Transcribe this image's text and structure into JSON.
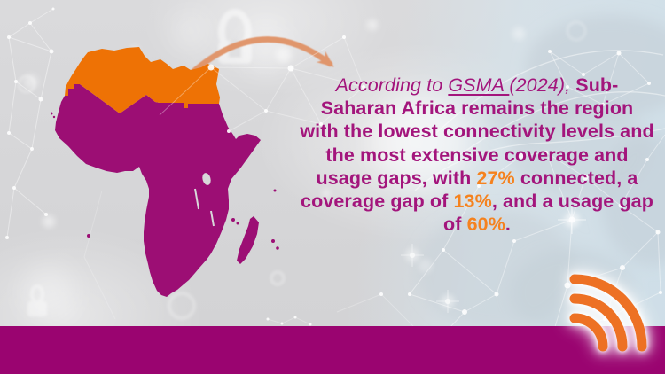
{
  "quote": {
    "lines": [
      {
        "segments": [
          {
            "text": "According to ",
            "style": "it"
          },
          {
            "text": "GSMA ",
            "style": "it ul"
          },
          {
            "text": "(2024),",
            "style": "it"
          },
          {
            "text": " Sub-",
            "style": "b"
          }
        ]
      },
      {
        "segments": [
          {
            "text": "Saharan Africa remains the region",
            "style": "b"
          }
        ]
      },
      {
        "segments": [
          {
            "text": "with the lowest connectivity levels and",
            "style": "b"
          }
        ]
      },
      {
        "segments": [
          {
            "text": "the most extensive coverage and",
            "style": "b"
          }
        ]
      },
      {
        "segments": [
          {
            "text": "usage gaps, with ",
            "style": "b"
          },
          {
            "text": "27%",
            "style": "b or"
          },
          {
            "text": " connected, a",
            "style": "b"
          }
        ]
      },
      {
        "segments": [
          {
            "text": "coverage gap of ",
            "style": "b"
          },
          {
            "text": "13%",
            "style": "b or"
          },
          {
            "text": ", and a usage gap",
            "style": "b"
          }
        ]
      },
      {
        "segments": [
          {
            "text": "of ",
            "style": "b"
          },
          {
            "text": "60%",
            "style": "b or"
          },
          {
            "text": ".",
            "style": "b"
          }
        ]
      }
    ],
    "source": "GSMA (2024)",
    "stats": {
      "connected": "27%",
      "coverage_gap": "13%",
      "usage_gap": "60%"
    }
  },
  "map": {
    "regions": [
      {
        "name": "north-africa",
        "color": "#EE7205"
      },
      {
        "name": "sub-saharan-africa",
        "color": "#9C0E74"
      }
    ]
  },
  "icons": {
    "signal": "wireless-signal-arcs",
    "padlock": "security-padlock",
    "arrow": "curved-arrow"
  },
  "colors": {
    "map_north_africa": "#EE7205",
    "map_sub_saharan": "#9C0E74",
    "quote_text": "#A3157C",
    "stat_orange": "#F5821E",
    "bottom_bar": "#9A0470",
    "arrow": "#E09266",
    "signal_icon": "#ED7124",
    "background": "#D7D7D9"
  }
}
